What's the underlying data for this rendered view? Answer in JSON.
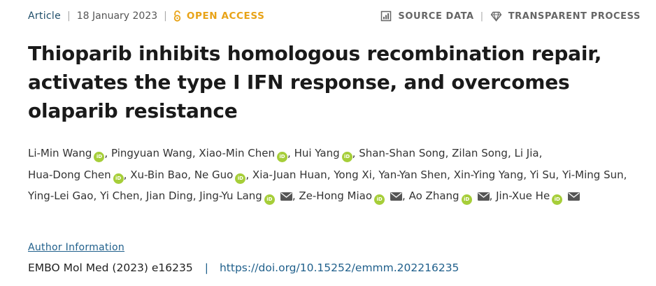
{
  "meta": {
    "article_type": "Article",
    "date": "18 January 2023",
    "access": "OPEN ACCESS",
    "source_data": "SOURCE DATA",
    "transparent_process": "TRANSPARENT PROCESS"
  },
  "title": "Thioparib inhibits homologous recombination repair, activates the type I IFN response, and overcomes olaparib resistance",
  "orcid_badge": "iD",
  "authors": [
    {
      "name": "Li-Min Wang",
      "orcid": true,
      "email": false
    },
    {
      "name": "Pingyuan Wang",
      "orcid": false,
      "email": false
    },
    {
      "name": "Xiao-Min Chen",
      "orcid": true,
      "email": false
    },
    {
      "name": "Hui Yang",
      "orcid": true,
      "email": false
    },
    {
      "name": "Shan-Shan Song",
      "orcid": false,
      "email": false
    },
    {
      "name": "Zilan Song",
      "orcid": false,
      "email": false
    },
    {
      "name": "Li Jia",
      "orcid": false,
      "email": false
    },
    {
      "name": "Hua-Dong Chen",
      "orcid": true,
      "email": false
    },
    {
      "name": "Xu-Bin Bao",
      "orcid": false,
      "email": false
    },
    {
      "name": "Ne Guo",
      "orcid": true,
      "email": false
    },
    {
      "name": "Xia-Juan Huan",
      "orcid": false,
      "email": false
    },
    {
      "name": "Yong Xi",
      "orcid": false,
      "email": false
    },
    {
      "name": "Yan-Yan Shen",
      "orcid": false,
      "email": false
    },
    {
      "name": "Xin-Ying Yang",
      "orcid": false,
      "email": false
    },
    {
      "name": "Yi Su",
      "orcid": false,
      "email": false
    },
    {
      "name": "Yi-Ming Sun",
      "orcid": false,
      "email": false
    },
    {
      "name": "Ying-Lei Gao",
      "orcid": false,
      "email": false
    },
    {
      "name": "Yi Chen",
      "orcid": false,
      "email": false
    },
    {
      "name": "Jian Ding",
      "orcid": false,
      "email": false
    },
    {
      "name": "Jing-Yu Lang",
      "orcid": true,
      "email": true
    },
    {
      "name": "Ze-Hong Miao",
      "orcid": true,
      "email": true
    },
    {
      "name": "Ao Zhang",
      "orcid": true,
      "email": true
    },
    {
      "name": "Jin-Xue He",
      "orcid": true,
      "email": true
    }
  ],
  "author_information": "Author Information",
  "citation": {
    "journal": "EMBO Mol Med (2023) e16235",
    "doi": "https://doi.org/10.15252/emmm.202216235"
  },
  "colors": {
    "accent": "#1f5f8b",
    "open_access": "#e8a317",
    "orcid": "#a6ce39"
  }
}
